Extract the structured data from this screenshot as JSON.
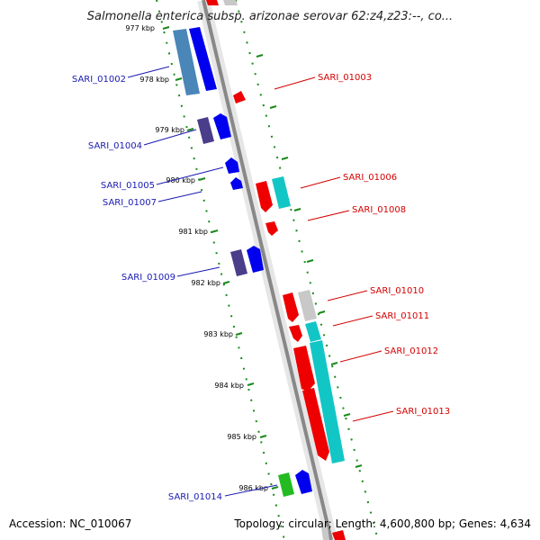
{
  "title": "Salmonella enterica subsp. arizonae serovar 62:z4,z23:--, co...",
  "footer": {
    "accession": "Accession: NC_010067",
    "topology": "Topology: circular; Length: 4,600,800 bp; Genes: 4,634"
  },
  "colors": {
    "blue": "#0000ee",
    "steel_blue": "#4a86b8",
    "dark_purple": "#4a3d8a",
    "red": "#ee0000",
    "cyan": "#13c6c6",
    "gray": "#c8c8c8",
    "green": "#22bb22",
    "axis": "#888888",
    "ruler": "#1a8a1a",
    "label_left": "#1a1ab4",
    "label_right": "#d40000"
  },
  "ticks": [
    "977 kbp",
    "978 kbp",
    "979 kbp",
    "980 kbp",
    "981 kbp",
    "982 kbp",
    "983 kbp",
    "984 kbp",
    "985 kbp",
    "986 kbp"
  ],
  "labels_left": [
    "SARI_01002",
    "SARI_01004",
    "SARI_01005",
    "SARI_01007",
    "SARI_01009",
    "SARI_01014"
  ],
  "labels_right": [
    "SARI_01003",
    "SARI_01006",
    "SARI_01008",
    "SARI_01010",
    "SARI_01011",
    "SARI_01012",
    "SARI_01013"
  ]
}
